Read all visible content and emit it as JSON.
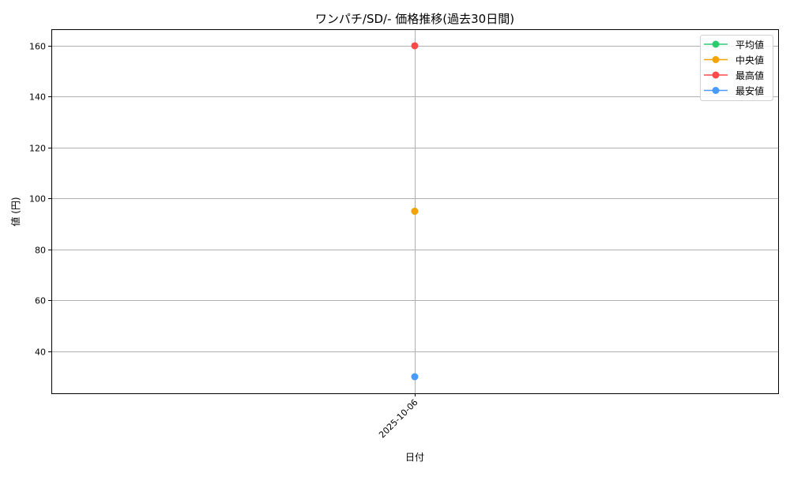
{
  "chart_data": {
    "type": "line",
    "title": "ワンパチ/SD/- 価格推移(過去30日間)",
    "xlabel": "日付",
    "ylabel": "値 (円)",
    "categories": [
      "2025-10-06"
    ],
    "ylim": [
      23.5,
      166.5
    ],
    "yticks": [
      40,
      60,
      80,
      100,
      120,
      140,
      160
    ],
    "grid": true,
    "legend_position": "top-right",
    "series": [
      {
        "name": "平均値",
        "color": "#2ecc71",
        "values": [
          95
        ]
      },
      {
        "name": " 中央値",
        "color": "#f5a300",
        "values": [
          95
        ]
      },
      {
        "name": "最高値",
        "color": "#ff4a4a",
        "values": [
          160
        ]
      },
      {
        "name": "最安値",
        "color": "#4a9bff",
        "values": [
          30
        ]
      }
    ]
  }
}
